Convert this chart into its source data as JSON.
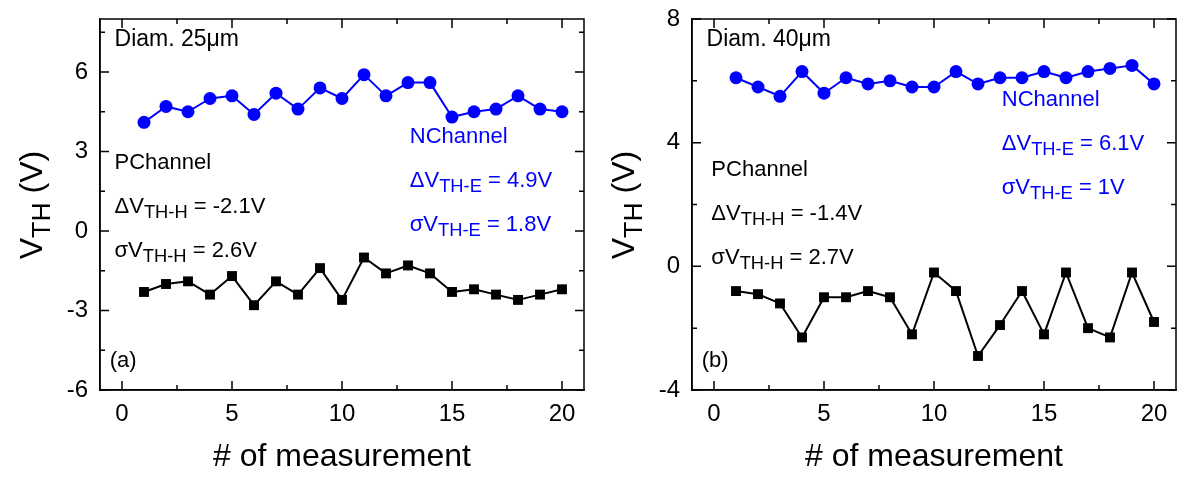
{
  "chart_data": [
    {
      "type": "line",
      "xlabel": "# of measurement",
      "ylabel": "V$_{TH}$ (V)",
      "x": [
        1,
        2,
        3,
        4,
        5,
        6,
        7,
        8,
        9,
        10,
        11,
        12,
        13,
        14,
        15,
        16,
        17,
        18,
        19,
        20
      ],
      "xlim": [
        -1,
        21
      ],
      "xticks": [
        0,
        {
          "value": 2.5,
          "label": null
        },
        5,
        {
          "value": 7.5,
          "label": null
        },
        10,
        {
          "value": 12.5,
          "label": null
        },
        15,
        {
          "value": 17.5,
          "label": null
        },
        20
      ],
      "ylim": [
        -6,
        8
      ],
      "yticks": [
        -6,
        {
          "value": -4.5,
          "label": null
        },
        -3,
        {
          "value": -1.5,
          "label": null
        },
        0,
        {
          "value": 1.5,
          "label": null
        },
        3,
        {
          "value": 4.5,
          "label": null
        },
        6,
        {
          "value": 7.5,
          "label": null
        }
      ],
      "series": [
        {
          "name": "NChannel",
          "color": "#0000ff",
          "marker": "circle",
          "values": [
            4.1,
            4.7,
            4.5,
            5.0,
            5.1,
            4.4,
            5.2,
            4.6,
            5.4,
            5.0,
            5.9,
            5.1,
            5.6,
            5.6,
            4.3,
            4.5,
            4.6,
            5.1,
            4.6,
            4.5
          ]
        },
        {
          "name": "PChannel",
          "color": "#000000",
          "marker": "square",
          "values": [
            -2.3,
            -2.0,
            -1.9,
            -2.4,
            -1.7,
            -2.8,
            -1.9,
            -2.4,
            -1.4,
            -2.6,
            -1.0,
            -1.6,
            -1.3,
            -1.6,
            -2.3,
            -2.2,
            -2.4,
            -2.6,
            -2.4,
            -2.2
          ]
        }
      ],
      "annotations": [
        "Diam. 25μm",
        "(a)",
        "ΔV$_{TH-E}$ = 4.9V",
        "σV$_{TH-E}$ = 1.8V",
        "ΔV$_{TH-H}$ = -2.1V",
        "σV$_{TH-H}$ = 2.6V"
      ]
    },
    {
      "type": "line",
      "xlabel": "# of measurement",
      "ylabel": "V$_{TH}$ (V)",
      "x": [
        1,
        2,
        3,
        4,
        5,
        6,
        7,
        8,
        9,
        10,
        11,
        12,
        13,
        14,
        15,
        16,
        17,
        18,
        19,
        20
      ],
      "xlim": [
        -1,
        21
      ],
      "xticks": [
        0,
        {
          "value": 2.5,
          "label": null
        },
        5,
        {
          "value": 7.5,
          "label": null
        },
        10,
        {
          "value": 12.5,
          "label": null
        },
        15,
        {
          "value": 17.5,
          "label": null
        },
        20
      ],
      "ylim": [
        -4,
        8
      ],
      "yticks": [
        -4,
        {
          "value": -2,
          "label": null
        },
        0,
        {
          "value": 2,
          "label": null
        },
        4,
        {
          "value": 6,
          "label": null
        },
        8
      ],
      "series": [
        {
          "name": "NChannel",
          "color": "#0000ff",
          "marker": "circle",
          "values": [
            6.1,
            5.8,
            5.5,
            6.3,
            5.6,
            6.1,
            5.9,
            6.0,
            5.8,
            5.8,
            6.3,
            5.9,
            6.1,
            6.1,
            6.3,
            6.1,
            6.3,
            6.4,
            6.5,
            5.9
          ]
        },
        {
          "name": "PChannel",
          "color": "#000000",
          "marker": "square",
          "values": [
            -0.8,
            -0.9,
            -1.2,
            -2.3,
            -1.0,
            -1.0,
            -0.8,
            -1.0,
            -2.2,
            -0.2,
            -0.8,
            -2.9,
            -1.9,
            -0.8,
            -2.2,
            -0.2,
            -2.0,
            -2.3,
            -0.2,
            -1.8
          ]
        }
      ],
      "annotations": [
        "Diam. 40μm",
        "(b)",
        "ΔV$_{TH-E}$ = 6.1V",
        "σV$_{TH-E}$ = 1V",
        "ΔV$_{TH-H}$ = -1.4V",
        "σV$_{TH-H}$ = 2.7V"
      ]
    }
  ]
}
